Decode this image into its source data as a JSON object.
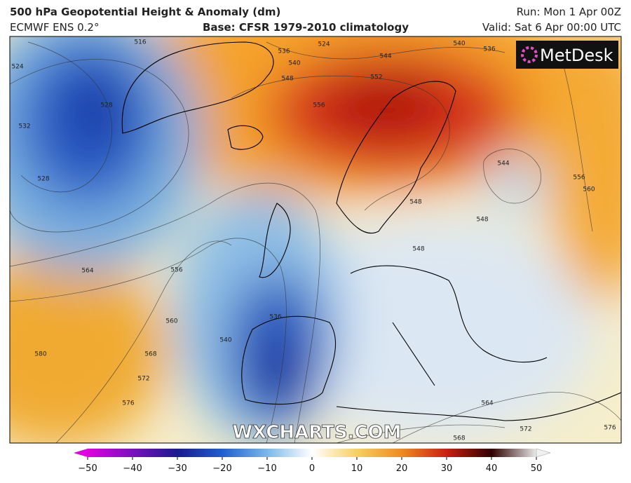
{
  "header": {
    "title": "500 hPa Geopotential Height & Anomaly (dm)",
    "model": "ECMWF ENS 0.2°",
    "base": "Base: CFSR 1979-2010 climatology",
    "run": "Run: Mon 1 Apr 00Z",
    "valid": "Valid: Sat 6 Apr 00:00 UTC"
  },
  "logo": "MetDesk",
  "watermark": "WXCHARTS.COM",
  "contour_labels": [
    "524",
    "536",
    "540",
    "544",
    "540",
    "536",
    "548",
    "552",
    "556",
    "544",
    "548",
    "548",
    "548",
    "556",
    "560",
    "564",
    "556",
    "560",
    "568",
    "572",
    "576",
    "580",
    "536",
    "540",
    "564",
    "572",
    "568",
    "576",
    "528",
    "532",
    "524",
    "528",
    "516"
  ],
  "colorbar": {
    "ticks": [
      "−50",
      "−40",
      "−30",
      "−20",
      "−10",
      "0",
      "10",
      "20",
      "30",
      "40",
      "50"
    ]
  }
}
